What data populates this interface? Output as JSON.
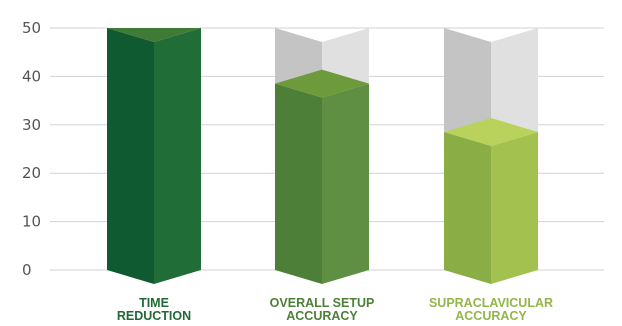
{
  "chart_data": {
    "type": "bar",
    "style": "3d-cylinder-with-gray-remainder",
    "categories": [
      [
        "TIME",
        "REDUCTION"
      ],
      [
        "OVERALL SETUP",
        "ACCURACY"
      ],
      [
        "SUPRACLAVICULAR",
        "ACCURACY"
      ]
    ],
    "values": [
      50,
      38.5,
      28.5
    ],
    "ylim": [
      0,
      50
    ],
    "yticks": [
      "0",
      "10",
      "20",
      "30",
      "40",
      "50"
    ],
    "grid": true,
    "legend": "none",
    "colors": {
      "bars": [
        {
          "left": "#0f5a31",
          "right": "#206d37",
          "top": "#3f7a36",
          "label": "#1f6a35"
        },
        {
          "left": "#4d7f38",
          "right": "#5f8f42",
          "top": "#6d9a3a",
          "label": "#4d7f38"
        },
        {
          "left": "#8aad45",
          "right": "#a2c14f",
          "top": "#b9d25c",
          "label": "#92b64a"
        }
      ],
      "remainder_left": "#c4c4c4",
      "remainder_right": "#e0e0e0",
      "remainder_top": "#ebebeb",
      "grid": "#d2d2d2"
    }
  }
}
